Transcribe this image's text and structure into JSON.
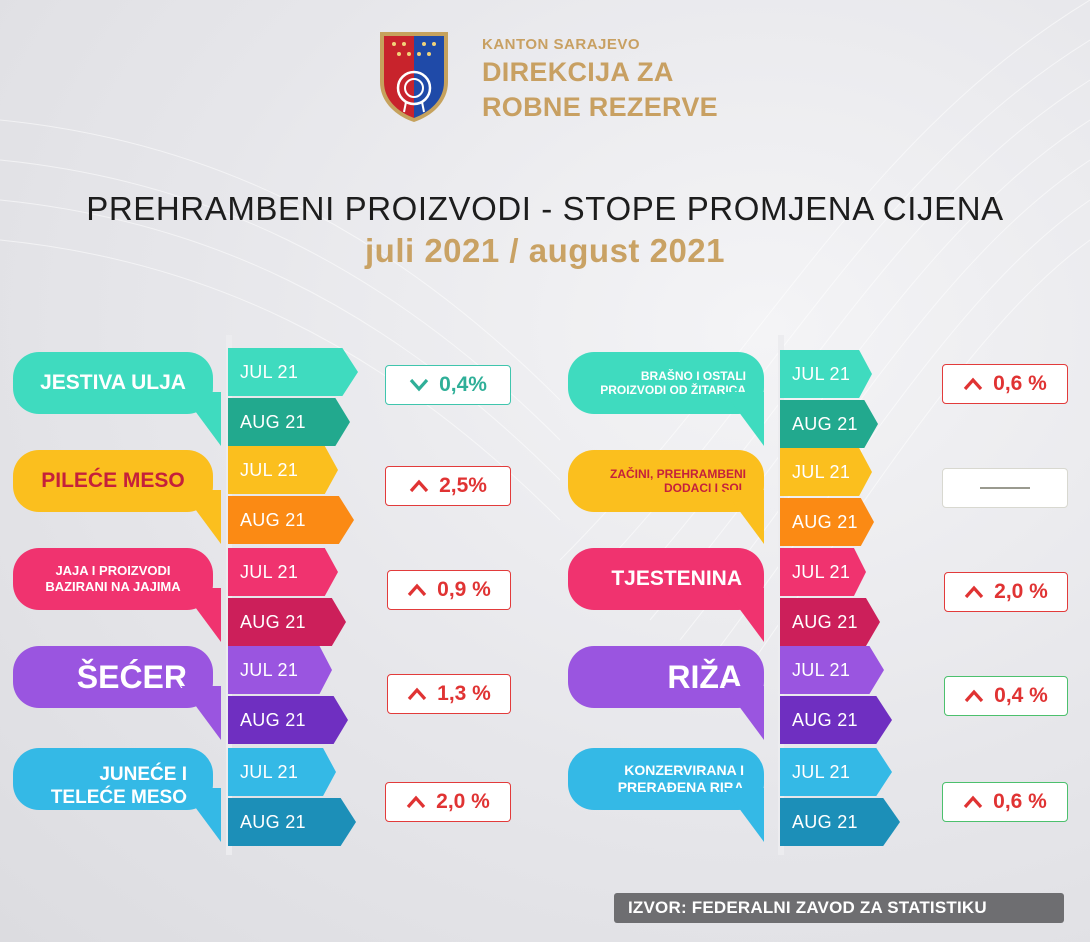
{
  "header": {
    "org_small": "KANTON SARAJEVO",
    "org_line1": "DIREKCIJA ZA",
    "org_line2": "ROBNE REZERVE"
  },
  "title": "PREHRAMBENI PROIZVODI - STOPE PROMJENA CIJENA",
  "subtitle": "juli 2021 / august 2021",
  "month_labels": {
    "m1": "JUL 21",
    "m2": "AUG 21"
  },
  "colors": {
    "teal": "#3fdbbf",
    "yellow": "#fbbf1e",
    "pink": "#f0336f",
    "purple": "#9a55e0",
    "blue": "#34b9e6",
    "gold": "#c9a264",
    "red_up": "#e03333"
  },
  "left_items": [
    {
      "name": "JESTIVA ULJA",
      "direction": "down",
      "change": "0,4%"
    },
    {
      "name": "PILEĆE MESO",
      "direction": "up",
      "change": "2,5%"
    },
    {
      "name_line1": "JAJA I PROIZVODI",
      "name_line2": "BAZIRANI NA JAJIMA",
      "direction": "up",
      "change": "0,9 %"
    },
    {
      "name": "ŠEĆER",
      "direction": "up",
      "change": "1,3 %"
    },
    {
      "name_line1": "JUNEĆE I",
      "name_line2": "TELEĆE MESO",
      "direction": "up",
      "change": "2,0 %"
    }
  ],
  "right_items": [
    {
      "name_line1": "BRAŠNO I OSTALI",
      "name_line2": "PROIZVODI OD ŽITARICA",
      "direction": "up",
      "change": "0,6 %"
    },
    {
      "name_line1": "ZAČINI, PREHRAMBENI",
      "name_line2": "DODACI I SOL",
      "direction": "none",
      "change": ""
    },
    {
      "name": "TJESTENINA",
      "direction": "up",
      "change": "2,0 %"
    },
    {
      "name": "RIŽA",
      "direction": "up",
      "change": "0,4 %"
    },
    {
      "name_line1": "KONZERVIRANA I",
      "name_line2": "PRERAĐENA RIBA",
      "direction": "up",
      "change": "0,6 %"
    }
  ],
  "source": "IZVOR: FEDERALNI ZAVOD ZA STATISTIKU"
}
